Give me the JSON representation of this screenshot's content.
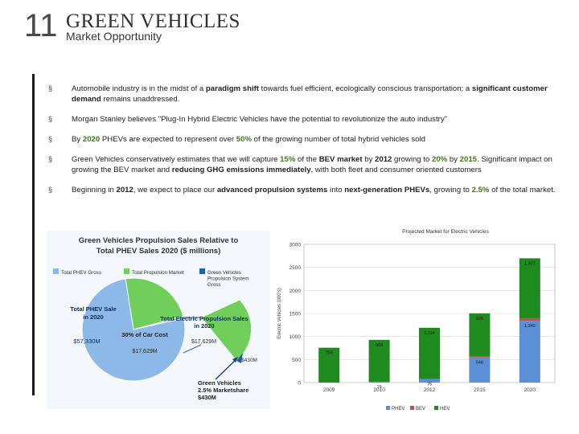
{
  "header": {
    "slide_number": "11",
    "title": "GREEN VEHICLES",
    "subtitle": "Market Opportunity"
  },
  "bullets": [
    {
      "parts": [
        {
          "t": "Automobile industry is in the midst of a "
        },
        {
          "t": "paradigm shift",
          "s": "dark"
        },
        {
          "t": " towards fuel efficient, ecologically conscious transportation; a "
        },
        {
          "t": "significant customer demand",
          "s": "dark"
        },
        {
          "t": " remains unaddressed."
        }
      ]
    },
    {
      "parts": [
        {
          "t": "Morgan Stanley believes \"Plug-In Hybrid Electric Vehicles have the potential to revolutionize the auto industry\""
        }
      ]
    },
    {
      "parts": [
        {
          "t": "By "
        },
        {
          "t": "2020",
          "s": "green"
        },
        {
          "t": " PHEVs are expected to represent over "
        },
        {
          "t": "50%",
          "s": "green"
        },
        {
          "t": " of the growing number of total hybrid vehicles sold"
        }
      ]
    },
    {
      "parts": [
        {
          "t": "Green Vehicles conservatively estimates that we will capture "
        },
        {
          "t": "15%",
          "s": "green"
        },
        {
          "t": " of the "
        },
        {
          "t": "BEV market",
          "s": "dark"
        },
        {
          "t": " by "
        },
        {
          "t": "2012",
          "s": "dark"
        },
        {
          "t": " growing to "
        },
        {
          "t": "20%",
          "s": "green"
        },
        {
          "t": " by "
        },
        {
          "t": "2015",
          "s": "green"
        },
        {
          "t": ". Significant impact on growing the BEV market and "
        },
        {
          "t": "reducing GHG emissions immediately",
          "s": "dark"
        },
        {
          "t": ", with both fleet and consumer oriented customers"
        }
      ]
    },
    {
      "parts": [
        {
          "t": "Beginning in "
        },
        {
          "t": "2012",
          "s": "dark"
        },
        {
          "t": ", we expect to place our "
        },
        {
          "t": "advanced propulsion systems",
          "s": "dark"
        },
        {
          "t": " into "
        },
        {
          "t": "next-generation PHEVs",
          "s": "dark"
        },
        {
          "t": ", growing to "
        },
        {
          "t": "2.5%",
          "s": "green"
        },
        {
          "t": " of the total market."
        }
      ]
    }
  ],
  "colors": {
    "phev": "#5b8fd6",
    "bev": "#c0504d",
    "hev": "#1f8a1f",
    "pie_gross": "#8db9e8",
    "pie_propulsion": "#6fcf5a",
    "green_text": "#3b7d18"
  },
  "chart_data": [
    {
      "type": "pie",
      "title": "Green Vehicles Propulsion Sales Relative to Total PHEV Sales 2020 ($ millions)",
      "legend": [
        "Total PHEV Gross",
        "Total Propulsion Market",
        "Green Vehicles Propulsion System Gross"
      ],
      "slices": [
        {
          "name": "Total PHEV Gross",
          "value": 57330,
          "label": "$57,330M"
        },
        {
          "name": "Total Propulsion Market",
          "value": 17629,
          "label": "$17,629M"
        },
        {
          "name": "Green Vehicles Propulsion System Gross",
          "value": 430,
          "label": "$430M"
        }
      ],
      "annotations": [
        "Total PHEV Sales in 2020",
        "30% of Car Cost",
        "Total Electric Propulsion Sales in 2020",
        "$17,629M",
        "$430M",
        "Green Vehicles 2.5% Marketshare $430M"
      ],
      "legend_position": "top"
    },
    {
      "type": "bar",
      "stacked": true,
      "title": "Projected Market for Electric Vehicles",
      "ylabel": "Electric Vehicles (000's)",
      "xlabel": "",
      "categories": [
        "2009",
        "2010",
        "2012",
        "2015",
        "2020"
      ],
      "series": [
        {
          "name": "PHEV",
          "values": [
            0,
            19,
            75,
            546,
            1340
          ]
        },
        {
          "name": "BEV",
          "values": [
            0,
            0,
            0,
            30,
            50
          ]
        },
        {
          "name": "HEV",
          "values": [
            756,
            908,
            1114,
            926,
            1307
          ]
        }
      ],
      "bar_labels": {
        "PHEV": [
          "",
          "19",
          "75",
          "546",
          "1,340"
        ],
        "HEV": [
          "756",
          "908",
          "1,114",
          "926",
          "1,307"
        ]
      },
      "ylim": [
        0,
        3000
      ],
      "yticks": [
        0,
        500,
        1000,
        1500,
        2000,
        2500,
        3000
      ],
      "grid": true,
      "legend_position": "bottom"
    }
  ]
}
